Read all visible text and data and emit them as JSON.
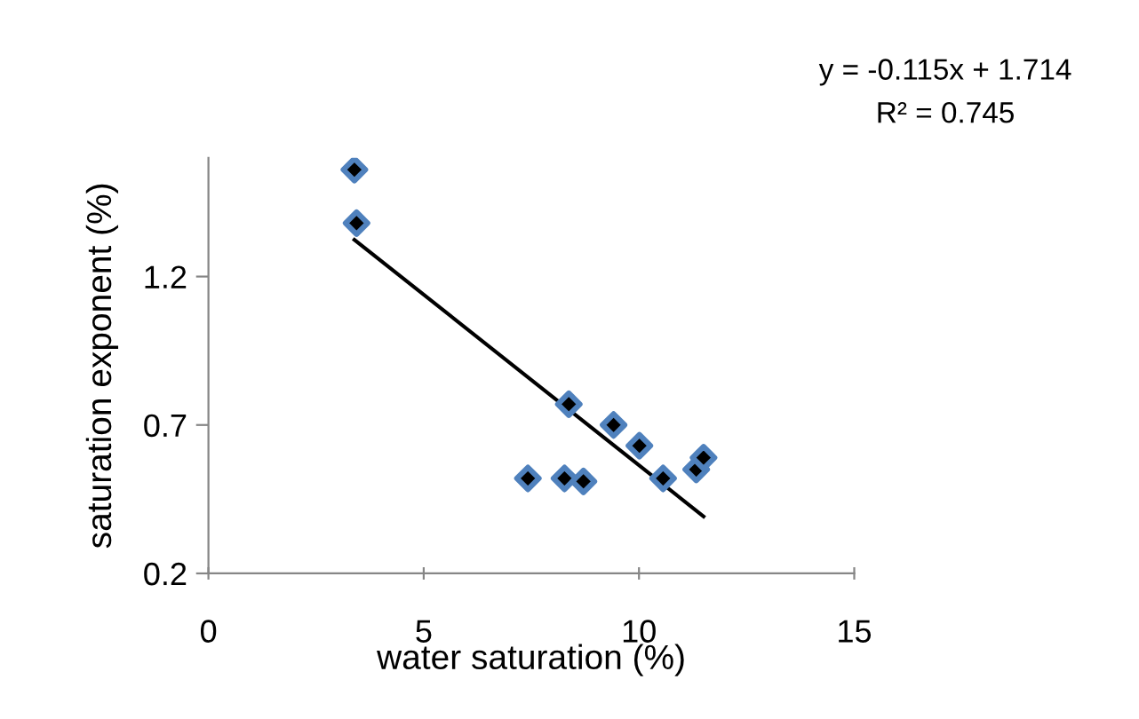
{
  "chart_data": {
    "type": "scatter",
    "xlabel": "water saturation (%)",
    "ylabel": "saturation exponent (%)",
    "annotations": [
      "y = -0.115x + 1.714",
      "R² = 0.745"
    ],
    "series": [
      {
        "color": "#4f81bd",
        "marker": "diamond",
        "x": [
          3.39,
          3.44,
          7.42,
          8.27,
          8.71,
          8.37,
          9.41,
          10.01,
          10.56,
          11.33,
          11.5
        ],
        "values": [
          1.56,
          1.38,
          0.52,
          0.52,
          0.51,
          0.77,
          0.7,
          0.63,
          0.52,
          0.55,
          0.59
        ]
      },
      {
        "type": "line",
        "color": "#000000",
        "marker": "none",
        "line_style": "solid",
        "x": [
          3.39,
          11.5
        ],
        "values": [
          1.324,
          0.392
        ]
      }
    ],
    "xlim": [
      0,
      15
    ],
    "ylim": [
      0.2,
      1.6
    ],
    "xticks": [
      0,
      5,
      10,
      15
    ],
    "yticks": [
      0.2,
      0.7,
      1.2
    ],
    "grid": false,
    "legend": false
  }
}
